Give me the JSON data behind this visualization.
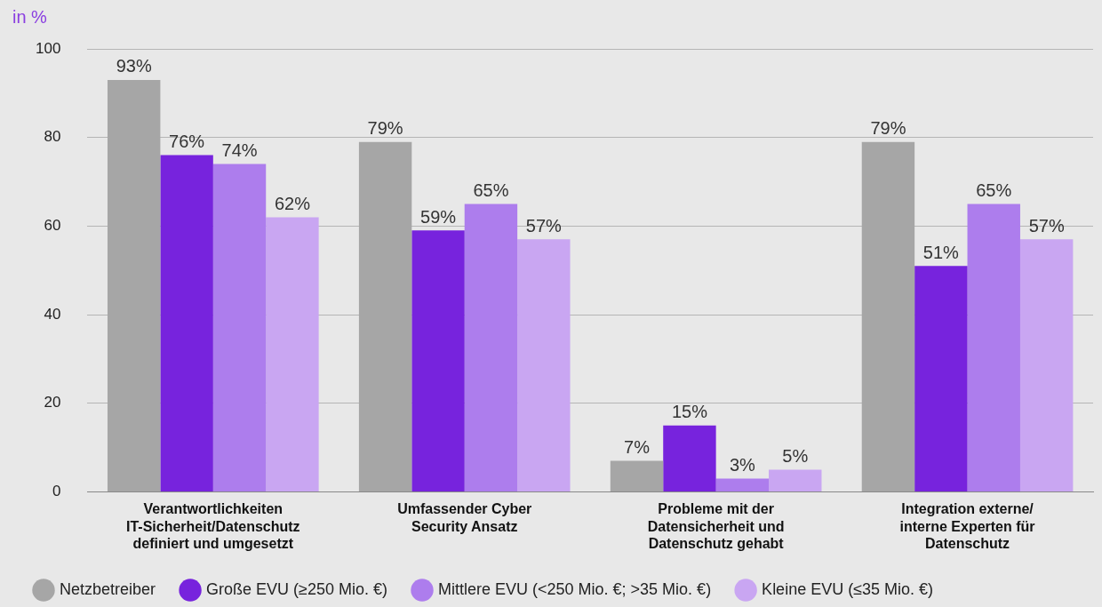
{
  "chart_data": {
    "type": "bar",
    "ylabel": "in %",
    "categories": [
      "Verantwortlichkeiten IT-Sicherheit/Datenschutz definiert und umgesetzt",
      "Umfassender Cyber Security Ansatz",
      "Probleme mit der Datensicherheit und Datenschutz gehabt",
      "Integration externe/ interne Experten für Datenschutz"
    ],
    "series": [
      {
        "name": "Netzbetreiber",
        "color": "#a6a6a6",
        "values": [
          93,
          79,
          7,
          79
        ],
        "value_labels": [
          "93%",
          "79%",
          "7%",
          "79%"
        ]
      },
      {
        "name": "Große EVU (≥250 Mio. €)",
        "color": "#7723dd",
        "values": [
          76,
          59,
          15,
          51
        ],
        "value_labels": [
          "76%",
          "59%",
          "15%",
          "51%"
        ]
      },
      {
        "name": "Mittlere EVU (<250 Mio. €; >35 Mio. €)",
        "color": "#ad7ded",
        "values": [
          74,
          65,
          3,
          65
        ],
        "value_labels": [
          "74%",
          "65%",
          "3%",
          "65%"
        ]
      },
      {
        "name": "Kleine EVU (≤35 Mio. €)",
        "color": "#c9a6f2",
        "values": [
          62,
          57,
          5,
          57
        ],
        "value_labels": [
          "62%",
          "57%",
          "5%",
          "57%"
        ]
      }
    ],
    "ylim": [
      0,
      100
    ],
    "yticks": [
      0,
      20,
      40,
      60,
      80,
      100
    ],
    "grid": "y",
    "legend": "bottom"
  }
}
